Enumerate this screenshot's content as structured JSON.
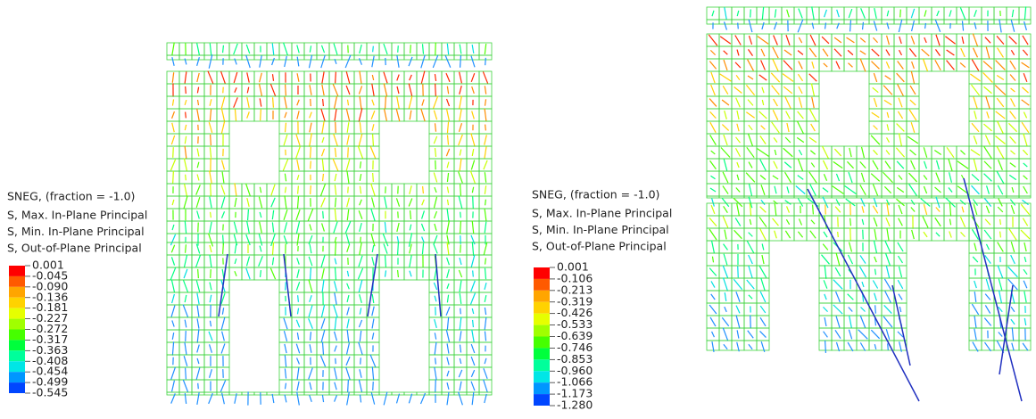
{
  "panels": [
    {
      "legend": {
        "title": "SNEG, (fraction = -1.0)",
        "lines": [
          "S, Max. In-Plane Principal",
          "S, Min. In-Plane Principal",
          "S, Out-of-Plane Principal"
        ],
        "values": [
          "0.001",
          "-0.045",
          "-0.090",
          "-0.136",
          "-0.181",
          "-0.227",
          "-0.272",
          "-0.317",
          "-0.363",
          "-0.408",
          "-0.454",
          "-0.499",
          "-0.545"
        ],
        "colors": [
          "#ff0000",
          "#ff5a00",
          "#ffa500",
          "#ffd200",
          "#e6ff00",
          "#a0ff00",
          "#46ff00",
          "#00ff3c",
          "#00ff9b",
          "#00e6e6",
          "#0096ff",
          "#0046ff"
        ]
      }
    },
    {
      "legend": {
        "title": "SNEG, (fraction = -1.0)",
        "lines": [
          "S, Max. In-Plane Principal",
          "S, Min. In-Plane Principal",
          "S, Out-of-Plane Principal"
        ],
        "values": [
          "0.001",
          "-0.106",
          "-0.213",
          "-0.319",
          "-0.426",
          "-0.533",
          "-0.639",
          "-0.746",
          "-0.853",
          "-0.960",
          "-1.066",
          "-1.173",
          "-1.280"
        ],
        "colors": [
          "#ff0000",
          "#ff5a00",
          "#ffa500",
          "#ffd200",
          "#e6ff00",
          "#a0ff00",
          "#46ff00",
          "#00ff3c",
          "#00ff9b",
          "#00e6e6",
          "#0096ff",
          "#0046ff"
        ]
      }
    }
  ]
}
